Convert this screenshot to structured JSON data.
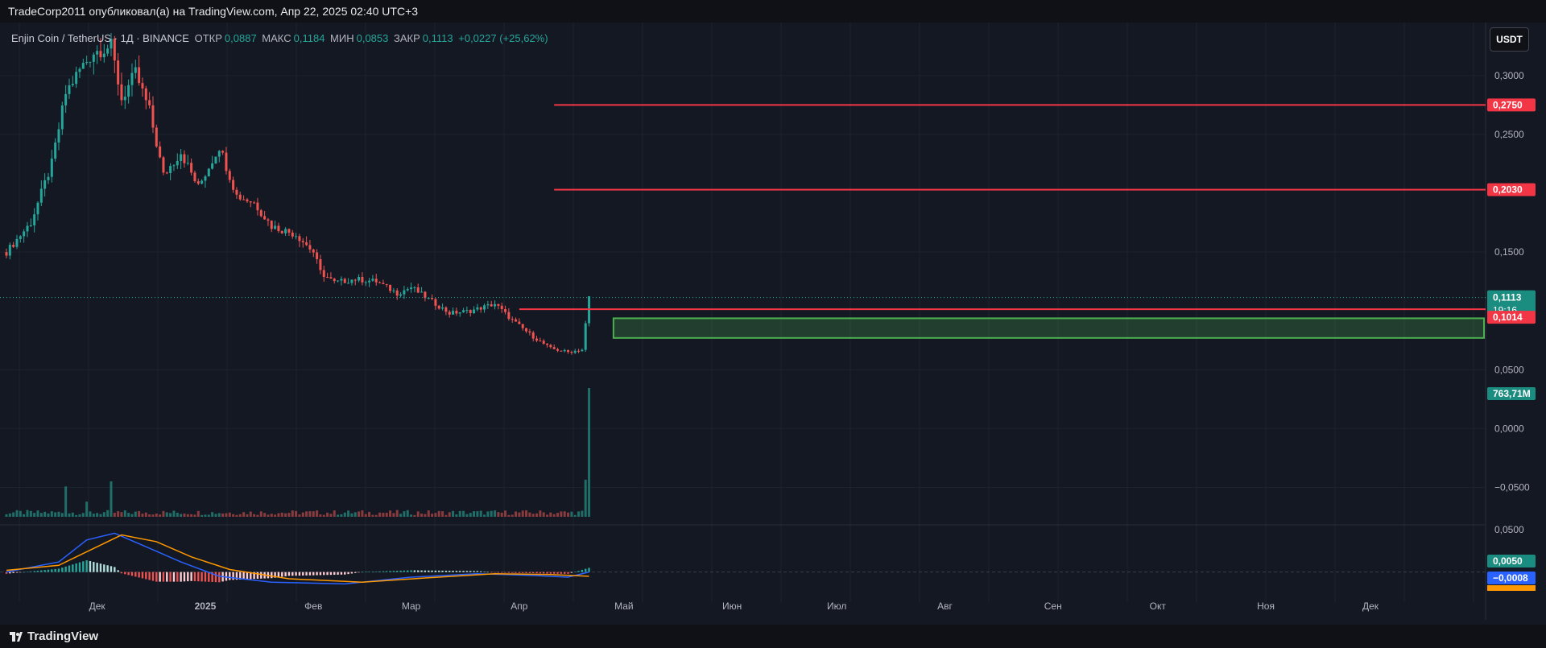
{
  "header": {
    "published": "TradeCorp2011 опубликовал(а) на TradingView.com, Апр 22, 2025 02:40 UTC+3"
  },
  "legend": {
    "symbol": "Enjin Coin / TetherUS · 1Д · BINANCE",
    "open_label": "ОТКР",
    "open": "0,0887",
    "high_label": "МАКС",
    "high": "0,1184",
    "low_label": "МИН",
    "low": "0,0853",
    "close_label": "ЗАКР",
    "close": "0,1113",
    "change": "+0,0227 (+25,62%)"
  },
  "currency_button": "USDT",
  "footer": {
    "brand": "TradingView"
  },
  "colors": {
    "up": "#26a69a",
    "down": "#ef5350",
    "resistance": "#f23645",
    "zone": "#4caf50",
    "macd": "#2962ff",
    "signal": "#ff9800"
  },
  "chart_data": {
    "type": "candlestick",
    "symbol": "ENJUSDT",
    "ylim": [
      -0.075,
      0.33
    ],
    "yticks": [
      "0,3000",
      "0,2500",
      "0,1500",
      "0,0500",
      "0,0000",
      "−0,0500"
    ],
    "ytick_values": [
      0.3,
      0.25,
      0.15,
      0.05,
      0.0,
      -0.05
    ],
    "xticks": [
      "Дек",
      "2025",
      "Фев",
      "Мар",
      "Апр",
      "Май",
      "Июн",
      "Июл",
      "Авг",
      "Сен",
      "Окт",
      "Ноя",
      "Дек"
    ],
    "xtick_dates": [
      "2024-12-01",
      "2025-01-01",
      "2025-02-01",
      "2025-03-01",
      "2025-04-01",
      "2025-05-01",
      "2025-06-01",
      "2025-07-01",
      "2025-08-01",
      "2025-09-01",
      "2025-10-01",
      "2025-11-01",
      "2025-12-01"
    ],
    "date_range": [
      "2024-11-05",
      "2026-01-03"
    ],
    "last_date": "2025-04-21",
    "price_path": [
      [
        "2024-11-05",
        0.15
      ],
      [
        "2024-11-12",
        0.175
      ],
      [
        "2024-11-18",
        0.225
      ],
      [
        "2024-11-22",
        0.285
      ],
      [
        "2024-11-26",
        0.305
      ],
      [
        "2024-11-30",
        0.32
      ],
      [
        "2024-12-05",
        0.325
      ],
      [
        "2024-12-08",
        0.28
      ],
      [
        "2024-12-12",
        0.302
      ],
      [
        "2024-12-16",
        0.27
      ],
      [
        "2024-12-20",
        0.215
      ],
      [
        "2024-12-25",
        0.235
      ],
      [
        "2024-12-30",
        0.205
      ],
      [
        "2025-01-05",
        0.24
      ],
      [
        "2025-01-10",
        0.198
      ],
      [
        "2025-01-15",
        0.192
      ],
      [
        "2025-01-20",
        0.172
      ],
      [
        "2025-01-27",
        0.165
      ],
      [
        "2025-02-01",
        0.15
      ],
      [
        "2025-02-03",
        0.133
      ],
      [
        "2025-02-07",
        0.124
      ],
      [
        "2025-02-13",
        0.127
      ],
      [
        "2025-02-19",
        0.125
      ],
      [
        "2025-02-25",
        0.115
      ],
      [
        "2025-03-01",
        0.12
      ],
      [
        "2025-03-07",
        0.108
      ],
      [
        "2025-03-12",
        0.098
      ],
      [
        "2025-03-18",
        0.1
      ],
      [
        "2025-03-25",
        0.106
      ],
      [
        "2025-03-30",
        0.092
      ],
      [
        "2025-04-05",
        0.078
      ],
      [
        "2025-04-10",
        0.068
      ],
      [
        "2025-04-15",
        0.065
      ],
      [
        "2025-04-19",
        0.067
      ],
      [
        "2025-04-20",
        0.0887
      ],
      [
        "2025-04-21",
        0.1113
      ]
    ],
    "resistance_levels": [
      {
        "value": 0.275,
        "label": "0,2750",
        "from": "2025-04-11"
      },
      {
        "value": 0.203,
        "label": "0,2030",
        "from": "2025-04-11"
      },
      {
        "value": 0.1014,
        "label": "0,1014",
        "from": "2025-04-01"
      }
    ],
    "support_zone": {
      "low": 0.077,
      "high": 0.0937,
      "from": "2025-04-28"
    },
    "last_price": {
      "value": 0.1113,
      "label": "0,1113",
      "countdown": "19:16"
    },
    "volume": {
      "label": "763,71M",
      "last_value": 763.71,
      "spikes": [
        [
          "2024-11-22",
          180
        ],
        [
          "2024-12-05",
          210
        ],
        [
          "2024-11-28",
          90
        ],
        [
          "2025-04-20",
          220
        ],
        [
          "2025-04-21",
          763.71
        ]
      ],
      "base": 25
    },
    "macd": {
      "ylim": [
        -0.028,
        0.055
      ],
      "tick": "0,0500",
      "histogram_label": "0,0050",
      "macd_label": "−0,0008",
      "macd_path": [
        [
          "2024-11-05",
          0.0
        ],
        [
          "2024-11-20",
          0.012
        ],
        [
          "2024-11-28",
          0.038
        ],
        [
          "2024-12-06",
          0.046
        ],
        [
          "2024-12-15",
          0.03
        ],
        [
          "2024-12-25",
          0.012
        ],
        [
          "2025-01-05",
          -0.005
        ],
        [
          "2025-01-20",
          -0.012
        ],
        [
          "2025-02-10",
          -0.014
        ],
        [
          "2025-03-01",
          -0.006
        ],
        [
          "2025-03-20",
          -0.002
        ],
        [
          "2025-04-05",
          -0.004
        ],
        [
          "2025-04-15",
          -0.006
        ],
        [
          "2025-04-21",
          0.0
        ]
      ],
      "signal_path": [
        [
          "2024-11-05",
          0.002
        ],
        [
          "2024-11-20",
          0.008
        ],
        [
          "2024-12-01",
          0.03
        ],
        [
          "2024-12-08",
          0.044
        ],
        [
          "2024-12-18",
          0.036
        ],
        [
          "2024-12-28",
          0.018
        ],
        [
          "2025-01-08",
          0.003
        ],
        [
          "2025-01-25",
          -0.008
        ],
        [
          "2025-02-15",
          -0.012
        ],
        [
          "2025-03-05",
          -0.007
        ],
        [
          "2025-03-25",
          -0.002
        ],
        [
          "2025-04-10",
          -0.003
        ],
        [
          "2025-04-21",
          -0.005
        ]
      ]
    }
  }
}
